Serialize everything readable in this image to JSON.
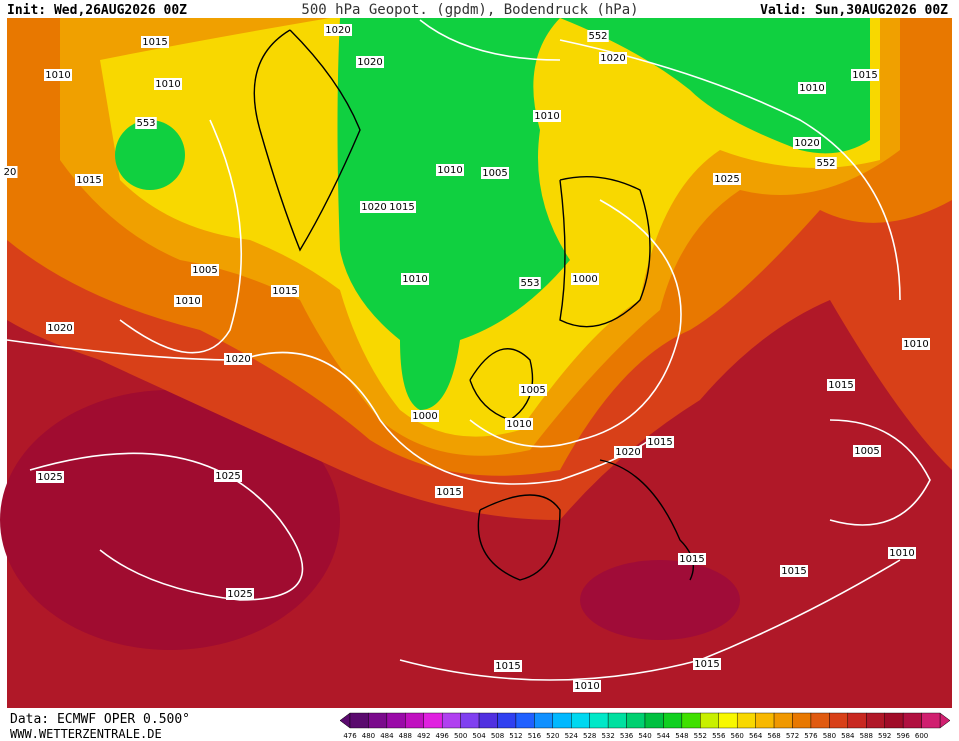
{
  "header": {
    "init": "Init: Wed,26AUG2026 00Z",
    "title": "500 hPa Geopot. (gpdm), Bodendruck (hPa)",
    "valid": "Valid: Sun,30AUG2026 00Z"
  },
  "isobar_labels": [
    "1015",
    "1020",
    "1010",
    "1010",
    "553",
    "1020",
    "552",
    "1020",
    "1010",
    "1015",
    "1010",
    "1020",
    "552",
    "1015",
    "1010",
    "1005",
    "1025",
    "1020",
    "1015",
    "1005",
    "1010",
    "553",
    "1000",
    "1010",
    "1015",
    "1020",
    "1020",
    "1010",
    "1015",
    "1005",
    "1000",
    "1010",
    "1015",
    "1020",
    "1005",
    "1025",
    "1025",
    "1015",
    "1010",
    "1015",
    "1015",
    "1025",
    "1015",
    "1015",
    "1010",
    "20"
  ],
  "scale": {
    "values": [
      476,
      480,
      484,
      488,
      492,
      496,
      500,
      504,
      508,
      512,
      516,
      520,
      524,
      528,
      532,
      536,
      540,
      544,
      548,
      552,
      556,
      560,
      564,
      568,
      572,
      576,
      580,
      584,
      588,
      592,
      596,
      600
    ],
    "colors": [
      "#5a0a6e",
      "#7a0a8c",
      "#9a0aa8",
      "#c010c0",
      "#e020e0",
      "#b040f0",
      "#8040f0",
      "#5030e0",
      "#3040f0",
      "#2060ff",
      "#1090ff",
      "#00b8ff",
      "#00d8f0",
      "#00e8c8",
      "#00e0a0",
      "#00d070",
      "#00c040",
      "#10d020",
      "#40e000",
      "#c8f000",
      "#f8f800",
      "#f8d800",
      "#f8b800",
      "#f09800",
      "#e87800",
      "#e05a10",
      "#d84018",
      "#c82820",
      "#b01828",
      "#a00c28",
      "#b01040",
      "#d02070"
    ]
  },
  "footer": {
    "source": "Data: ECMWF OPER 0.500°",
    "website": "WWW.WETTERZENTRALE.DE"
  }
}
